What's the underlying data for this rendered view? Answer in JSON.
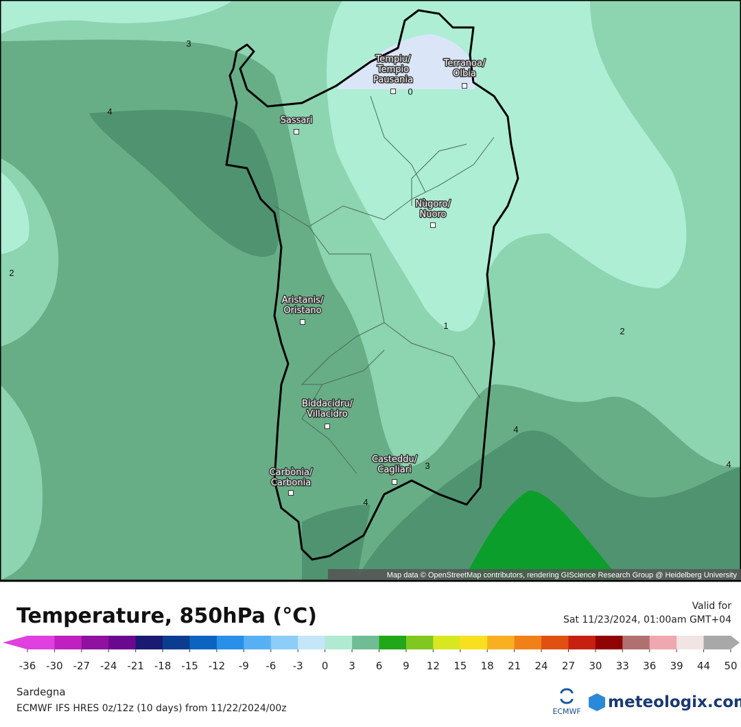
{
  "map": {
    "cities": [
      {
        "lines": [
          "Tempiu/",
          "Tempio",
          "Pausania"
        ]
      },
      {
        "lines": [
          "Terranoa/",
          "Olbia"
        ]
      },
      {
        "lines": [
          "Sassari"
        ]
      },
      {
        "lines": [
          "Nùgoro/",
          "Nuoro"
        ]
      },
      {
        "lines": [
          "Aristanis/",
          "Oristano"
        ]
      },
      {
        "lines": [
          "Biddacidru/",
          "Villacidro"
        ]
      },
      {
        "lines": [
          "Casteddu/",
          "Cagliari"
        ]
      },
      {
        "lines": [
          "Carbònia/",
          "Carbonia"
        ]
      }
    ],
    "contour_labels": [
      3,
      4,
      2,
      1,
      2,
      4,
      4,
      3,
      4,
      0
    ],
    "attribution": "Map data © OpenStreetMap contributors, rendering GIScience Research Group @ Heidelberg University"
  },
  "legend": {
    "title": "Temperature, 850hPa (°C)",
    "valid_label": "Valid for",
    "valid_time": "Sat 11/23/2024, 01:00am GMT+04",
    "colorbar": {
      "ticks": [
        -36,
        -30,
        -27,
        -24,
        -21,
        -18,
        -15,
        -12,
        -9,
        -6,
        -3,
        0,
        3,
        6,
        9,
        12,
        15,
        18,
        21,
        24,
        27,
        30,
        33,
        36,
        39,
        44,
        50
      ],
      "colors": [
        "#e040e0",
        "#c020c0",
        "#9010a0",
        "#6a0890",
        "#1a1a70",
        "#0a3c90",
        "#0a64c0",
        "#2890e8",
        "#58b0f4",
        "#8ccef8",
        "#c4e6f8",
        "#b0ead2",
        "#70bc94",
        "#20a818",
        "#80c820",
        "#d8e820",
        "#f8e020",
        "#f8b020",
        "#f08018",
        "#e05010",
        "#c82010",
        "#900404",
        "#b07070",
        "#f0a8b0",
        "#f0e4e4",
        "#a8a8a8"
      ]
    }
  },
  "footer": {
    "region": "Sardegna",
    "model": "ECMWF IFS HRES 0z/12z (10 days) from 11/22/2024/00z",
    "ecmwf": "ECMWF",
    "brand": "meteologix.com"
  }
}
